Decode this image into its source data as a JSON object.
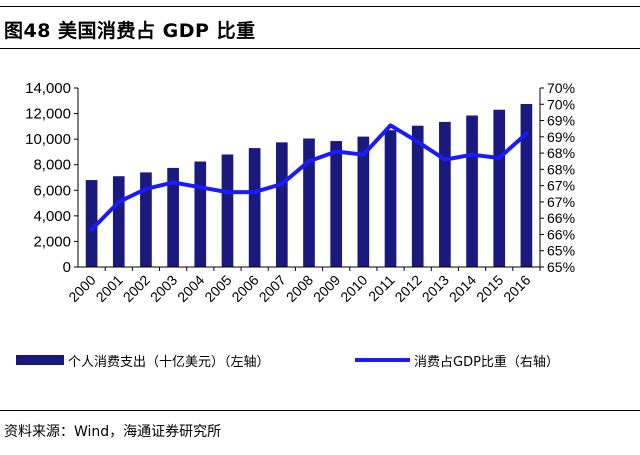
{
  "title": "图48 美国消费占 GDP 比重",
  "source": "资料来源：Wind，海通证券研究所",
  "colors": {
    "bar": "#1a1a7e",
    "line": "#1a1aff",
    "axis": "#000000"
  },
  "chart_data": {
    "type": "bar",
    "categories": [
      "2000",
      "2001",
      "2002",
      "2003",
      "2004",
      "2005",
      "2006",
      "2007",
      "2008",
      "2009",
      "2010",
      "2011",
      "2012",
      "2013",
      "2014",
      "2015",
      "2016"
    ],
    "series": [
      {
        "name": "个人消费支出（十亿美元）（左轴）",
        "type": "bar",
        "axis": "left",
        "values": [
          6800,
          7100,
          7400,
          7750,
          8250,
          8800,
          9300,
          9750,
          10050,
          9850,
          10200,
          10700,
          11050,
          11350,
          11850,
          12300,
          12750
        ]
      },
      {
        "name": "消费占GDP比重（右轴）",
        "type": "line",
        "axis": "right",
        "values": [
          65.65,
          66.5,
          66.9,
          67.1,
          66.95,
          66.8,
          66.8,
          67.05,
          67.75,
          68.05,
          67.95,
          68.85,
          68.35,
          67.8,
          67.95,
          67.85,
          68.6
        ]
      }
    ],
    "y_left": {
      "ylim": [
        0,
        14000
      ],
      "ticks": [
        "0",
        "2,000",
        "4,000",
        "6,000",
        "8,000",
        "10,000",
        "12,000",
        "14,000"
      ]
    },
    "y_right": {
      "ylim": [
        64.5,
        70
      ],
      "ticks": [
        "65%",
        "65%",
        "66%",
        "66%",
        "67%",
        "67%",
        "68%",
        "68%",
        "69%",
        "69%",
        "70%",
        "70%"
      ]
    },
    "grid": false,
    "legend_position": "bottom"
  }
}
